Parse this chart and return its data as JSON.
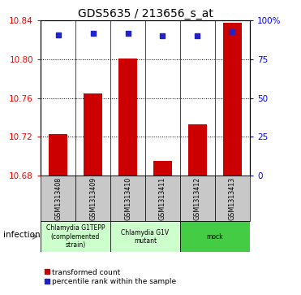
{
  "title": "GDS5635 / 213656_s_at",
  "samples": [
    "GSM1313408",
    "GSM1313409",
    "GSM1313410",
    "GSM1313411",
    "GSM1313412",
    "GSM1313413"
  ],
  "bar_values": [
    10.723,
    10.765,
    10.801,
    10.695,
    10.733,
    10.838
  ],
  "percentile_values": [
    91,
    92,
    92,
    90,
    90,
    93
  ],
  "bar_color": "#cc0000",
  "dot_color": "#2222cc",
  "ylim_left": [
    10.68,
    10.84
  ],
  "ylim_right": [
    0,
    100
  ],
  "yticks_left": [
    10.68,
    10.72,
    10.76,
    10.8,
    10.84
  ],
  "yticks_right": [
    0,
    25,
    50,
    75,
    100
  ],
  "ytick_labels_right": [
    "0",
    "25",
    "50",
    "75",
    "100%"
  ],
  "groups": [
    {
      "label": "Chlamydia G1TEPP\n(complemented\nstrain)",
      "start": 0,
      "end": 2,
      "color": "#ccffcc"
    },
    {
      "label": "Chlamydia G1V\nmutant",
      "start": 2,
      "end": 4,
      "color": "#ccffcc"
    },
    {
      "label": "mock",
      "start": 4,
      "end": 6,
      "color": "#44cc44"
    }
  ],
  "infection_label": "infection",
  "legend_red": "transformed count",
  "legend_blue": "percentile rank within the sample",
  "bar_width": 0.55,
  "base_value": 10.68
}
